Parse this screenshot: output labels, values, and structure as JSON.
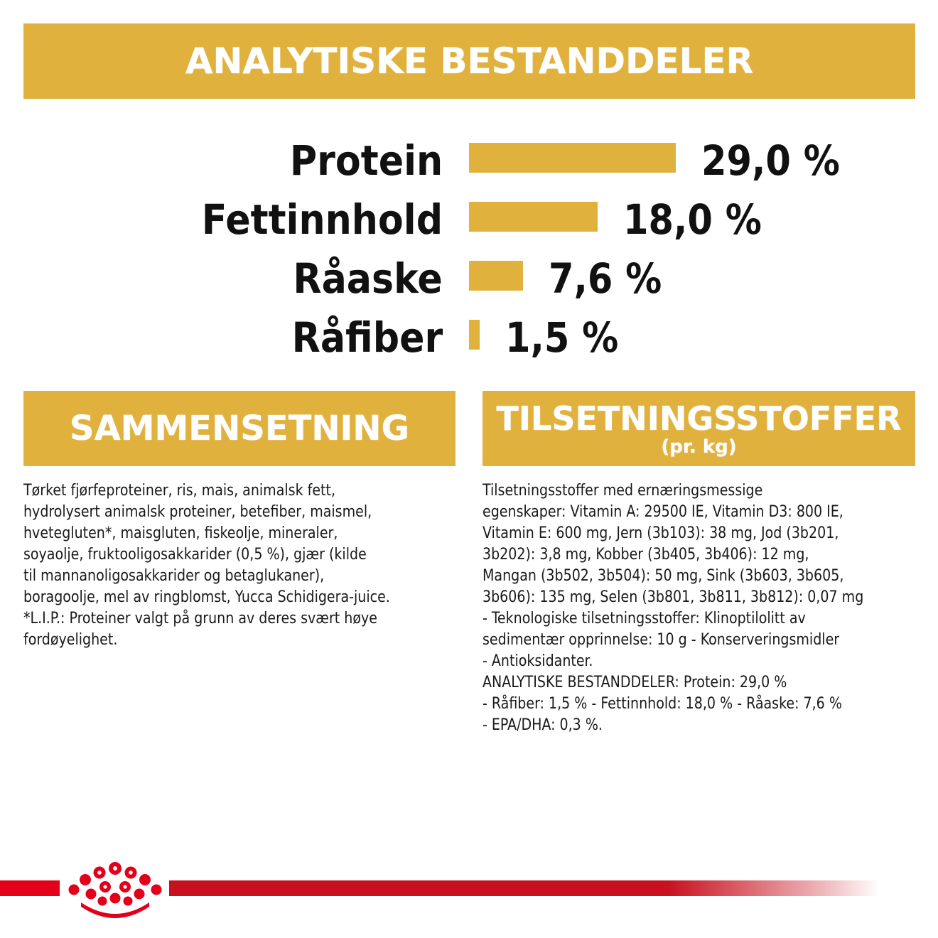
{
  "analytical": {
    "heading": "ANALYTISKE BESTANDDELER",
    "items": [
      {
        "label": "Protein",
        "value": "29,0 %",
        "percent": 29.0
      },
      {
        "label": "Fettinnhold",
        "value": "18,0 %",
        "percent": 18.0
      },
      {
        "label": "Råaske",
        "value": "7,6 %",
        "percent": 7.6
      },
      {
        "label": "Råfiber",
        "value": "1,5 %",
        "percent": 1.5
      }
    ]
  },
  "composition": {
    "heading": "SAMMENSETNING",
    "lines": [
      "Tørket fjørfeproteiner, ris, mais, animalsk fett,",
      "hydrolysert animalsk proteiner, betefiber, maismel,",
      "hvetegluten*, maisgluten, fiskeolje, mineraler,",
      "soyaolje, fruktooligosakkarider (0,5 %), gjær (kilde",
      "til mannanoligosakkarider og betaglukaner),",
      "boragoolje, mel av ringblomst, Yucca Schidigera-juice.",
      "*L.I.P.: Proteiner valgt på grunn av deres svært høye",
      "fordøyelighet."
    ]
  },
  "additives": {
    "heading": "TILSETNINGSSTOFFER",
    "subheading": "(pr. kg)",
    "lines": [
      "Tilsetningsstoffer med ernæringsmessige",
      "egenskaper: Vitamin A: 29500 IE, Vitamin D3: 800 IE,",
      "Vitamin E: 600 mg, Jern (3b103): 38 mg, Jod (3b201,",
      "3b202): 3,8 mg, Kobber (3b405, 3b406): 12 mg,",
      "Mangan (3b502, 3b504): 50 mg, Sink (3b603, 3b605,",
      "3b606): 135 mg, Selen (3b801, 3b811, 3b812): 0,07 mg",
      "- Teknologiske tilsetningsstoffer: Klinoptilolitt av",
      "sedimentær opprinnelse: 10 g - Konserveringsmidler",
      "- Antioksidanter.",
      "ANALYTISKE BESTANDDELER: Protein: 29,0 %",
      "- Råfiber: 1,5 % - Fettinnhold: 18,0 % - Råaske: 7,6 %",
      "- EPA/DHA: 0,3 %."
    ]
  },
  "colors": {
    "accent": "#e1b13e",
    "brand_red": "#e2001a"
  },
  "logo_icon": "royal-canin-crown-icon"
}
